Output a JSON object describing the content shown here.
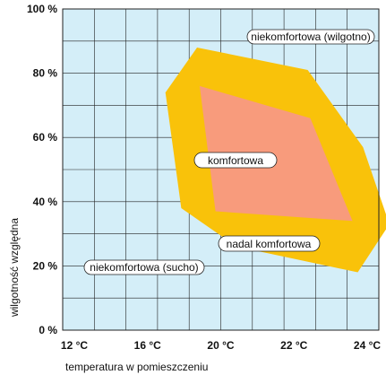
{
  "chart_data": {
    "type": "area",
    "title": "",
    "xlabel": "temperatura w pomieszczeniu",
    "ylabel": "wilgotność względna",
    "xlim": [
      12,
      24
    ],
    "ylim": [
      0,
      100
    ],
    "x_ticks": [
      "12 °C",
      "16 °C",
      "20 °C",
      "22 °C",
      "24 °C"
    ],
    "y_ticks": [
      "0 %",
      "20 %",
      "40 %",
      "60 %",
      "80 %",
      "100 %"
    ],
    "grid": true,
    "background_color": "#d4eef8",
    "grid_color": "#222222",
    "regions": [
      {
        "name": "nadal komfortowa",
        "color": "#f9c20a",
        "points": [
          [
            17.1,
            88
          ],
          [
            21.3,
            81
          ],
          [
            23.4,
            57
          ],
          [
            24.4,
            33
          ],
          [
            23.2,
            18
          ],
          [
            18.6,
            26
          ],
          [
            16.5,
            38
          ],
          [
            15.9,
            74
          ]
        ]
      },
      {
        "name": "komfortowa",
        "color": "#f89b7c",
        "points": [
          [
            17.2,
            76
          ],
          [
            21.4,
            66
          ],
          [
            23.0,
            34
          ],
          [
            17.8,
            37
          ]
        ]
      }
    ],
    "annotations": {
      "wet": "niekomfortowa (wilgotno)",
      "dry": "niekomfortowa (sucho)",
      "comfort": "komfortowa",
      "still_comfort": "nadal komfortowa"
    }
  }
}
